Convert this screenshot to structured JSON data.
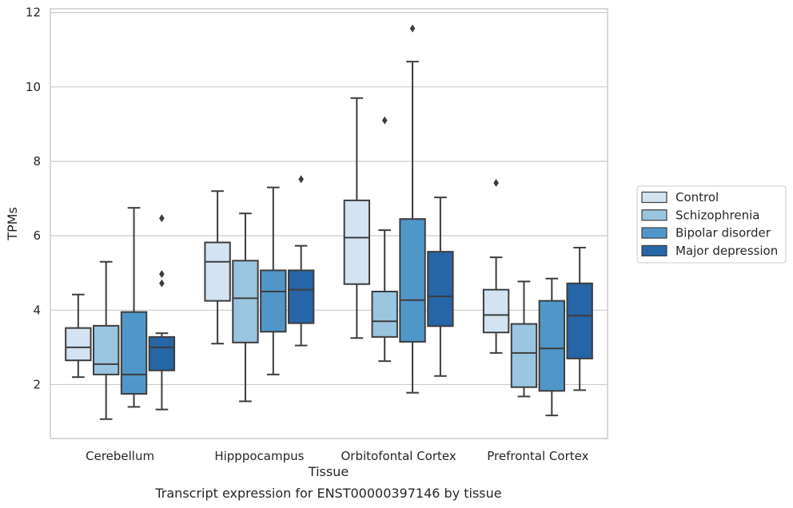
{
  "chart_data": {
    "type": "box",
    "title": "",
    "caption": "Transcript expression for ENST00000397146 by tissue",
    "xlabel": "Tissue",
    "ylabel": "TPMs",
    "ylim": [
      0.55,
      12.1
    ],
    "yticks": [
      2,
      4,
      6,
      8,
      10,
      12
    ],
    "grid": "horizontal",
    "legend_position": "right",
    "categories": [
      "Cerebellum",
      "Hipppocampus",
      "Orbitofontal Cortex",
      "Prefrontal Cortex"
    ],
    "series": [
      {
        "name": "Control",
        "color": "#d3e3f1",
        "boxes": [
          {
            "whislo": 2.2,
            "q1": 2.65,
            "med": 3.0,
            "q3": 3.52,
            "whishi": 4.42,
            "fliers": []
          },
          {
            "whislo": 3.1,
            "q1": 4.25,
            "med": 5.3,
            "q3": 5.82,
            "whishi": 7.2,
            "fliers": []
          },
          {
            "whislo": 3.25,
            "q1": 4.7,
            "med": 5.95,
            "q3": 6.95,
            "whishi": 9.7,
            "fliers": []
          },
          {
            "whislo": 2.85,
            "q1": 3.4,
            "med": 3.87,
            "q3": 4.55,
            "whishi": 5.42,
            "fliers": [
              7.42
            ]
          }
        ]
      },
      {
        "name": "Schizophrenia",
        "color": "#9ac5e0",
        "boxes": [
          {
            "whislo": 1.07,
            "q1": 2.27,
            "med": 2.55,
            "q3": 3.58,
            "whishi": 5.3,
            "fliers": []
          },
          {
            "whislo": 1.55,
            "q1": 3.13,
            "med": 4.32,
            "q3": 5.33,
            "whishi": 6.6,
            "fliers": []
          },
          {
            "whislo": 2.63,
            "q1": 3.28,
            "med": 3.7,
            "q3": 4.5,
            "whishi": 6.15,
            "fliers": [
              9.1
            ]
          },
          {
            "whislo": 1.68,
            "q1": 1.93,
            "med": 2.85,
            "q3": 3.63,
            "whishi": 4.77,
            "fliers": []
          }
        ]
      },
      {
        "name": "Bipolar disorder",
        "color": "#5097c9",
        "boxes": [
          {
            "whislo": 1.4,
            "q1": 1.75,
            "med": 2.27,
            "q3": 3.95,
            "whishi": 6.75,
            "fliers": []
          },
          {
            "whislo": 2.27,
            "q1": 3.42,
            "med": 4.5,
            "q3": 5.07,
            "whishi": 7.3,
            "fliers": []
          },
          {
            "whislo": 1.78,
            "q1": 3.15,
            "med": 4.27,
            "q3": 6.45,
            "whishi": 10.68,
            "fliers": [
              11.57
            ]
          },
          {
            "whislo": 1.17,
            "q1": 1.83,
            "med": 2.97,
            "q3": 4.25,
            "whishi": 4.85,
            "fliers": []
          }
        ]
      },
      {
        "name": "Major depression",
        "color": "#2665a6",
        "boxes": [
          {
            "whislo": 1.33,
            "q1": 2.38,
            "med": 3.0,
            "q3": 3.28,
            "whishi": 3.38,
            "fliers": [
              4.72,
              4.97,
              6.47
            ]
          },
          {
            "whislo": 3.05,
            "q1": 3.65,
            "med": 4.55,
            "q3": 5.07,
            "whishi": 5.73,
            "fliers": [
              7.52
            ]
          },
          {
            "whislo": 2.23,
            "q1": 3.57,
            "med": 4.37,
            "q3": 5.57,
            "whishi": 7.03,
            "fliers": []
          },
          {
            "whislo": 1.85,
            "q1": 2.7,
            "med": 3.85,
            "q3": 4.72,
            "whishi": 5.68,
            "fliers": []
          }
        ]
      }
    ]
  }
}
